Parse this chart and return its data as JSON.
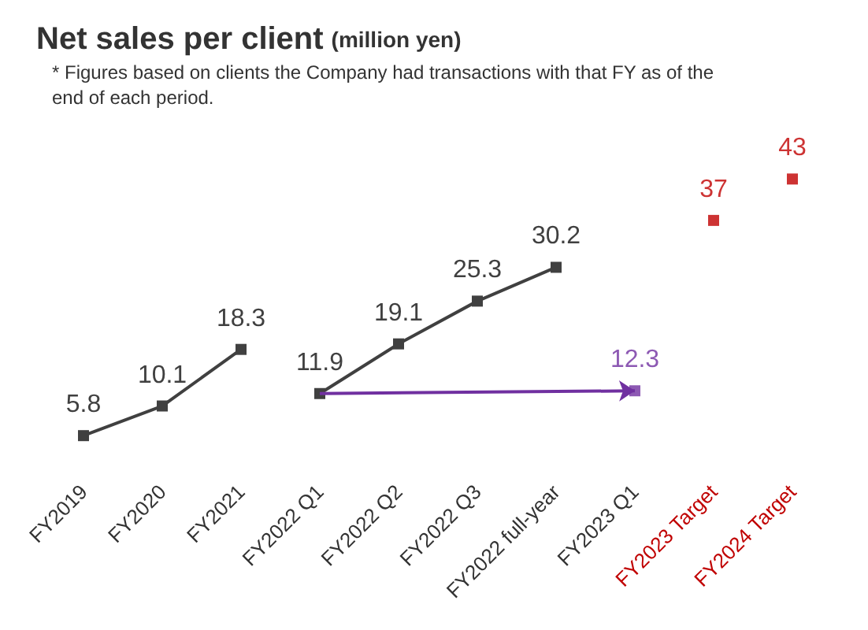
{
  "chart_data": {
    "type": "line",
    "title": "Net sales per client",
    "subtitle": "(million yen)",
    "annotations": [
      "* Figures based on clients the Company had transactions with that FY as of the end of each period."
    ],
    "categories": [
      "FY2019",
      "FY2020",
      "FY2021",
      "FY2022 Q1",
      "FY2022 Q2",
      "FY2022 Q3",
      "FY2022 full-year",
      "FY2023 Q1",
      "FY2023 Target",
      "FY2024 Target"
    ],
    "series": [
      {
        "color": "#404040",
        "values": [
          5.8,
          10.1,
          18.3,
          null,
          null,
          null,
          null,
          null,
          null,
          null
        ]
      },
      {
        "color": "#404040",
        "values": [
          null,
          null,
          null,
          11.9,
          19.1,
          25.3,
          30.2,
          null,
          null,
          null
        ]
      },
      {
        "type": "scatter",
        "color": "#7030a0",
        "values": [
          null,
          null,
          null,
          null,
          null,
          null,
          null,
          12.3,
          null,
          null
        ]
      },
      {
        "type": "scatter",
        "color": "#c00000",
        "values": [
          null,
          null,
          null,
          null,
          null,
          null,
          null,
          null,
          37,
          43
        ]
      }
    ],
    "data_labels": true,
    "grid": false,
    "marker": "square",
    "line_style": "solid"
  }
}
